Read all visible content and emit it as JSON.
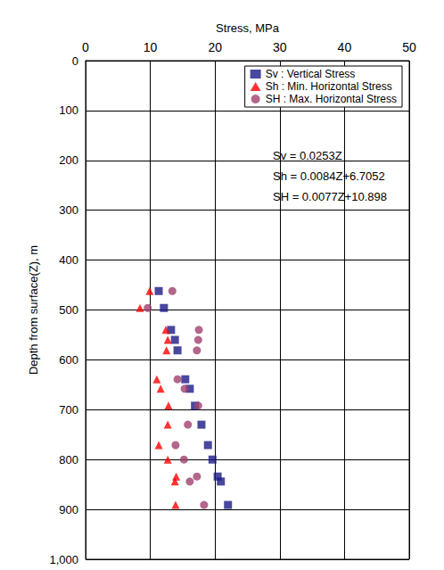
{
  "chart_data": {
    "type": "scatter",
    "x_label": "Stress, MPa",
    "y_label": "Depth from surface(Z), m",
    "xlim": [
      0,
      50
    ],
    "xticks": [
      0,
      10,
      20,
      30,
      40,
      50
    ],
    "ylim": [
      1000,
      0
    ],
    "yticks": [
      0,
      100,
      200,
      300,
      400,
      500,
      600,
      700,
      800,
      900,
      1000
    ],
    "grid": true,
    "legend": "upper right",
    "annotations": [
      "Sv = 0.0253Z",
      "Sh = 0.0084Z+6.7052",
      "SH = 0.0077Z+10.898"
    ],
    "series": [
      {
        "name": "Sv : Vertical Stress",
        "color": "#1c1a87",
        "marker": "square",
        "x": [
          11.3,
          12.1,
          13.2,
          13.8,
          14.2,
          15.4,
          16.1,
          16.9,
          17.9,
          18.9,
          19.6,
          20.4,
          20.9,
          22.0
        ],
        "y": [
          462,
          496,
          540,
          560,
          581,
          639,
          658,
          692,
          730,
          771,
          800,
          834,
          844,
          891
        ]
      },
      {
        "name": "Sh : Min. Horizontal Stress",
        "color": "#ff0000",
        "marker": "triangle",
        "x": [
          9.9,
          8.4,
          12.4,
          12.7,
          12.5,
          11.0,
          11.6,
          12.8,
          12.7,
          11.3,
          12.7,
          14.0,
          13.8,
          13.9
        ],
        "y": [
          462,
          496,
          540,
          560,
          581,
          639,
          658,
          692,
          730,
          771,
          800,
          834,
          844,
          891
        ]
      },
      {
        "name": "SH : Max. Horizontal Stress",
        "color": "#a0406f",
        "marker": "circle",
        "x": [
          13.4,
          9.6,
          17.5,
          17.4,
          17.2,
          14.2,
          15.3,
          17.4,
          15.8,
          13.9,
          15.2,
          17.2,
          16.1,
          18.3
        ],
        "y": [
          462,
          496,
          540,
          560,
          581,
          639,
          658,
          692,
          730,
          771,
          800,
          834,
          844,
          891
        ]
      }
    ]
  }
}
